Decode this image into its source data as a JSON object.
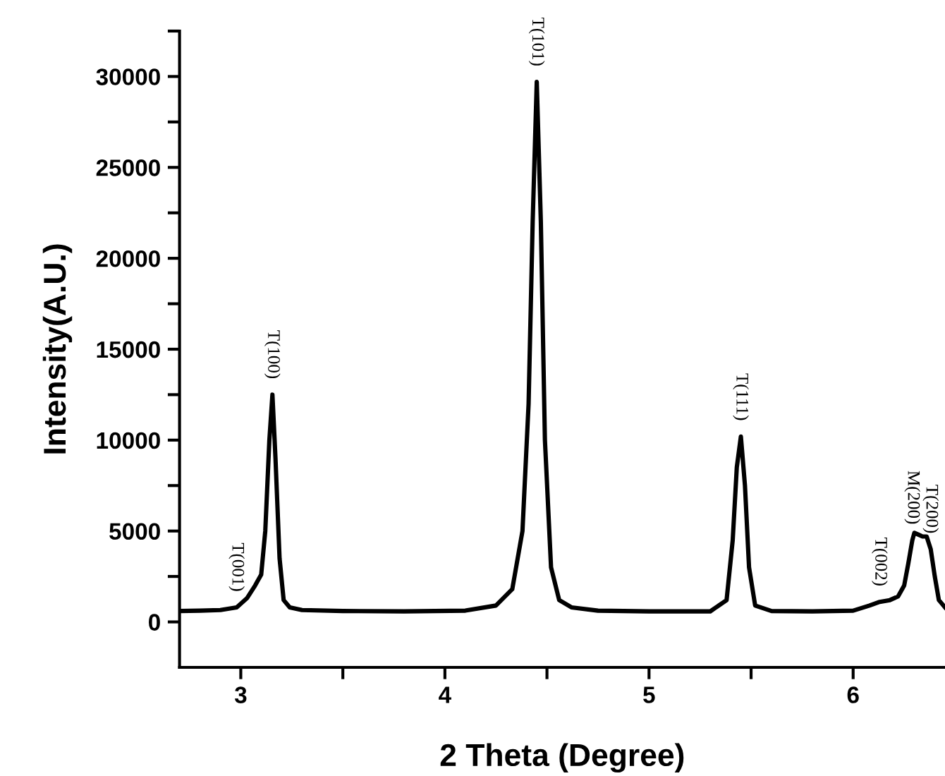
{
  "chart_data": {
    "type": "line",
    "xlabel": "2 Theta (Degree)",
    "ylabel": "Intensity(A.U.)",
    "series": [
      {
        "color": "#000000",
        "x": [
          2.7,
          2.8,
          2.9,
          2.98,
          3.03,
          3.07,
          3.1,
          3.12,
          3.14,
          3.155,
          3.17,
          3.19,
          3.21,
          3.24,
          3.3,
          3.5,
          3.8,
          4.1,
          4.25,
          4.33,
          4.38,
          4.41,
          4.43,
          4.45,
          4.47,
          4.49,
          4.52,
          4.56,
          4.62,
          4.75,
          5.0,
          5.3,
          5.38,
          5.41,
          5.43,
          5.45,
          5.47,
          5.49,
          5.52,
          5.6,
          5.8,
          6.0,
          6.08,
          6.13,
          6.18,
          6.22,
          6.25,
          6.27,
          6.29,
          6.3,
          6.32,
          6.34,
          6.36,
          6.38,
          6.4,
          6.42,
          6.45
        ],
        "values": [
          600,
          620,
          650,
          800,
          1300,
          2000,
          2600,
          5000,
          10000,
          12500,
          9000,
          3500,
          1200,
          800,
          650,
          600,
          580,
          620,
          900,
          1800,
          5000,
          12000,
          22000,
          29700,
          22000,
          10000,
          3000,
          1200,
          800,
          620,
          580,
          580,
          1200,
          4500,
          8500,
          10200,
          7500,
          3000,
          900,
          600,
          580,
          620,
          900,
          1100,
          1200,
          1400,
          2000,
          3200,
          4500,
          4900,
          4800,
          4700,
          4700,
          4000,
          2500,
          1200,
          800
        ]
      }
    ],
    "xlim": [
      2.7,
      6.45
    ],
    "ylim": [
      -2500,
      32500
    ],
    "xticks": [
      3,
      {
        "value": 3.5,
        "label": null
      },
      4,
      {
        "value": 4.5,
        "label": null
      },
      5,
      {
        "value": 5.5,
        "label": null
      },
      6
    ],
    "yticks": [
      0,
      {
        "value": 2500,
        "label": null
      },
      5000,
      {
        "value": 7500,
        "label": null
      },
      10000,
      {
        "value": 12500,
        "label": null
      },
      15000,
      {
        "value": 17500,
        "label": null
      },
      20000,
      {
        "value": 22500,
        "label": null
      },
      25000,
      {
        "value": 27500,
        "label": null
      },
      30000,
      {
        "value": 32500,
        "label": null
      }
    ],
    "annotations": [
      {
        "text": "T(001)",
        "x": 2.98,
        "y": 800
      },
      {
        "text": "T(100)",
        "x": 3.155,
        "y": 12500
      },
      {
        "text": "T(101)",
        "x": 4.45,
        "y": 29700
      },
      {
        "text": "T(111)",
        "x": 5.45,
        "y": 10200
      },
      {
        "text": "T(002)",
        "x": 6.13,
        "y": 1100
      },
      {
        "text": "M(200)",
        "x": 6.29,
        "y": 4500
      },
      {
        "text": "T(200)",
        "x": 6.38,
        "y": 4000
      }
    ],
    "grid": false,
    "legend": false
  }
}
